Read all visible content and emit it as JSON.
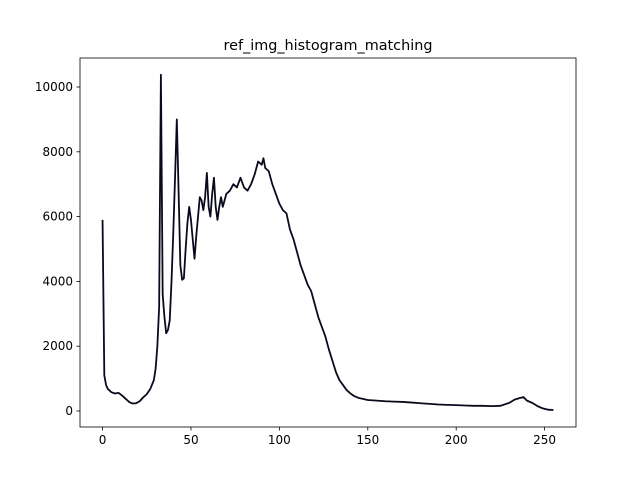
{
  "chart_data": {
    "type": "line",
    "title": "ref_img_histogram_matching",
    "x": [
      0,
      1,
      2,
      3,
      5,
      7,
      9,
      11,
      13,
      15,
      17,
      19,
      21,
      23,
      25,
      27,
      29,
      30,
      31,
      32,
      33,
      34,
      35,
      36,
      37,
      38,
      39,
      40,
      41,
      42,
      43,
      44,
      45,
      46,
      47,
      48,
      49,
      50,
      51,
      52,
      53,
      54,
      55,
      56,
      57,
      58,
      59,
      60,
      61,
      62,
      63,
      64,
      65,
      66,
      67,
      68,
      70,
      72,
      74,
      76,
      78,
      80,
      82,
      84,
      86,
      88,
      90,
      91,
      92,
      94,
      96,
      98,
      100,
      102,
      104,
      106,
      108,
      110,
      112,
      114,
      116,
      118,
      120,
      122,
      124,
      126,
      128,
      130,
      132,
      134,
      136,
      138,
      140,
      142,
      145,
      150,
      155,
      160,
      165,
      170,
      175,
      180,
      185,
      190,
      195,
      200,
      205,
      210,
      215,
      220,
      225,
      230,
      233,
      236,
      238,
      240,
      243,
      246,
      249,
      252,
      255
    ],
    "series": [
      {
        "color": "#0a0a1e",
        "values": [
          5900,
          1100,
          800,
          680,
          580,
          540,
          560,
          480,
          380,
          280,
          230,
          240,
          300,
          420,
          520,
          680,
          950,
          1300,
          2000,
          3200,
          10377,
          3600,
          2900,
          2400,
          2500,
          2800,
          4000,
          5500,
          7200,
          9000,
          6800,
          4500,
          4050,
          4100,
          5000,
          5800,
          6300,
          5900,
          5300,
          4700,
          5400,
          6000,
          6600,
          6500,
          6200,
          6600,
          7350,
          6300,
          6000,
          6700,
          7200,
          6300,
          5900,
          6300,
          6600,
          6300,
          6700,
          6800,
          7000,
          6900,
          7200,
          6900,
          6800,
          7000,
          7300,
          7700,
          7600,
          7800,
          7500,
          7400,
          7000,
          6700,
          6400,
          6200,
          6100,
          5600,
          5300,
          4900,
          4500,
          4200,
          3900,
          3700,
          3300,
          2900,
          2600,
          2300,
          1900,
          1550,
          1200,
          950,
          800,
          650,
          550,
          470,
          400,
          340,
          320,
          300,
          290,
          280,
          260,
          240,
          220,
          200,
          190,
          180,
          170,
          160,
          160,
          150,
          160,
          250,
          350,
          400,
          430,
          320,
          250,
          150,
          80,
          40,
          30
        ]
      }
    ],
    "xlim": [
      -12.75,
      267.75
    ],
    "ylim": [
      -494,
      10895
    ],
    "xticks": [
      0,
      50,
      100,
      150,
      200,
      250
    ],
    "yticks": [
      0,
      2000,
      4000,
      6000,
      8000,
      10000
    ]
  }
}
